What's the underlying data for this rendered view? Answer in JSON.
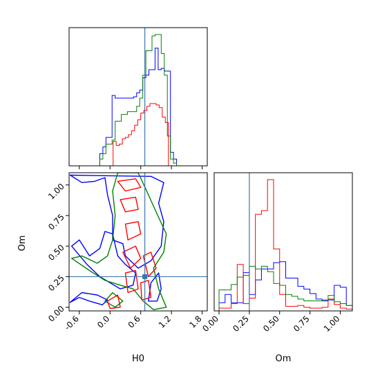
{
  "chart_data": {
    "type": "corner",
    "parameters": [
      "H0",
      "Om"
    ],
    "truth": {
      "H0": 0.68,
      "Om": 0.25
    },
    "colors": {
      "series1": "#0000ff",
      "series2": "#ff0000",
      "series3": "#008000",
      "truth": "#3b75af"
    },
    "hist_H0": {
      "type": "histogram",
      "ticks": [
        "-0.6",
        "0.0",
        "0.6",
        "1.2",
        "1.8"
      ],
      "tick_values": [
        -0.6,
        0.0,
        0.6,
        1.2,
        1.8
      ],
      "xlim": [
        -0.8,
        1.9
      ],
      "bin_width": 0.06,
      "series": [
        {
          "color": "blue",
          "edges_start": -0.2,
          "counts": [
            0.9,
            1.4,
            2.1,
            2.1,
            5.2,
            5.0,
            5.0,
            5.0,
            5.0,
            5.0,
            5.0,
            5.1,
            5.4,
            5.6,
            6.5,
            6.7,
            7.1,
            7.1,
            8.7,
            7.1,
            7.2,
            7.0,
            7.0,
            1.0,
            0.5
          ]
        },
        {
          "color": "green",
          "edges_start": -0.2,
          "counts": [
            0.5,
            0.9,
            1.6,
            1.6,
            1.9,
            3.3,
            3.3,
            3.8,
            3.8,
            4.0,
            4.0,
            4.0,
            4.4,
            5.0,
            6.7,
            8.5,
            8.5,
            9.6,
            9.7,
            9.7,
            8.3,
            6.7,
            2.2,
            0.5,
            0.2
          ]
        },
        {
          "color": "red",
          "edges_start": 0.0,
          "counts": [
            0.0,
            1.8,
            1.5,
            1.6,
            2.0,
            2.1,
            2.3,
            2.6,
            3.0,
            3.4,
            3.9,
            4.1,
            4.4,
            4.6,
            4.6,
            4.5,
            4.3,
            3.6,
            3.2,
            0.0
          ]
        }
      ]
    },
    "hist_Om": {
      "type": "histogram",
      "xlabel": "Om",
      "ticks": [
        "0.00",
        "0.25",
        "0.50",
        "0.75",
        "1.00"
      ],
      "tick_values": [
        0.0,
        0.25,
        0.5,
        0.75,
        1.0
      ],
      "xlim": [
        -0.04,
        1.1
      ],
      "bin_width": 0.05,
      "series": [
        {
          "color": "blue",
          "counts": [
            0.9,
            1.8,
            0.9,
            0.9,
            4.2,
            1.8,
            3.4,
            4.6,
            4.6,
            5.3,
            5.4,
            3.6,
            3.6,
            2.7,
            2.4,
            1.9,
            1.3,
            1.1,
            1.2,
            2.8,
            2.6,
            0.6
          ]
        },
        {
          "color": "red",
          "counts": [
            0.3,
            0.3,
            0.8,
            5.1,
            0.8,
            1.4,
            10.6,
            11.0,
            14.4,
            6.8,
            1.8,
            0.5,
            0.5,
            0.6,
            0.4,
            0.3,
            0.3,
            0.4,
            1.3,
            0.7,
            0.3,
            0.2
          ]
        },
        {
          "color": "green",
          "counts": [
            2.3,
            2.3,
            2.9,
            3.7,
            3.9,
            4.9,
            4.6,
            4.9,
            4.3,
            3.0,
            2.8,
            1.8,
            1.6,
            1.3,
            1.1,
            1.1,
            1.1,
            1.2,
            1.7,
            1.0,
            0.8,
            0.6
          ]
        }
      ]
    },
    "scatter_2d": {
      "type": "contour",
      "xlabel": "H0",
      "ylabel": "Om",
      "x_ticks": [
        "-0.6",
        "0.0",
        "0.6",
        "1.2",
        "1.8"
      ],
      "x_tick_values": [
        -0.6,
        0.0,
        0.6,
        1.2,
        1.8
      ],
      "y_ticks": [
        "0.00",
        "0.25",
        "0.50",
        "0.75",
        "1.00"
      ],
      "y_tick_values": [
        0.0,
        0.25,
        0.5,
        0.75,
        1.0
      ],
      "xlim": [
        -0.8,
        1.9
      ],
      "ylim": [
        -0.03,
        1.1
      ],
      "contours": [
        {
          "color": "blue",
          "points": [
            [
              -0.78,
              1.08
            ],
            [
              -0.55,
              1.02
            ],
            [
              -0.3,
              1.03
            ],
            [
              -0.1,
              1.06
            ],
            [
              -0.05,
              0.92
            ],
            [
              0.05,
              0.75
            ],
            [
              0.05,
              0.55
            ],
            [
              0.25,
              0.52
            ],
            [
              0.3,
              0.42
            ],
            [
              0.55,
              0.32
            ],
            [
              0.8,
              0.38
            ],
            [
              1.0,
              0.5
            ],
            [
              1.05,
              0.7
            ],
            [
              0.95,
              0.85
            ],
            [
              1.05,
              1.02
            ],
            [
              0.8,
              1.07
            ]
          ]
        },
        {
          "color": "blue",
          "points": [
            [
              -0.75,
              0.5
            ],
            [
              -0.6,
              0.55
            ],
            [
              -0.4,
              0.42
            ],
            [
              -0.2,
              0.48
            ],
            [
              -0.1,
              0.62
            ],
            [
              0.05,
              0.6
            ],
            [
              0.15,
              0.42
            ],
            [
              0.3,
              0.35
            ],
            [
              0.5,
              0.28
            ],
            [
              0.45,
              0.18
            ],
            [
              0.2,
              0.15
            ],
            [
              0.0,
              0.2
            ],
            [
              -0.2,
              0.25
            ],
            [
              -0.45,
              0.35
            ]
          ]
        },
        {
          "color": "blue",
          "points": [
            [
              -0.78,
              0.04
            ],
            [
              -0.6,
              0.08
            ],
            [
              -0.4,
              0.05
            ],
            [
              -0.15,
              0.02
            ],
            [
              -0.05,
              0.06
            ],
            [
              -0.25,
              0.1
            ],
            [
              -0.55,
              0.12
            ]
          ]
        },
        {
          "color": "blue",
          "points": [
            [
              0.75,
              0.05
            ],
            [
              0.8,
              0.2
            ],
            [
              0.95,
              0.28
            ],
            [
              1.0,
              0.15
            ],
            [
              0.92,
              0.05
            ]
          ]
        },
        {
          "color": "green",
          "points": [
            [
              -0.75,
              0.4
            ],
            [
              -0.55,
              0.42
            ],
            [
              -0.25,
              0.36
            ],
            [
              -0.05,
              0.42
            ],
            [
              0.05,
              0.55
            ],
            [
              0.1,
              0.75
            ],
            [
              0.05,
              0.95
            ],
            [
              0.15,
              1.1
            ],
            [
              0.55,
              1.1
            ],
            [
              0.75,
              0.92
            ],
            [
              0.9,
              0.78
            ],
            [
              1.1,
              0.6
            ],
            [
              1.05,
              0.45
            ],
            [
              0.85,
              0.32
            ],
            [
              0.95,
              0.15
            ],
            [
              1.1,
              0.0
            ],
            [
              0.85,
              -0.02
            ],
            [
              0.65,
              0.05
            ],
            [
              0.45,
              0.15
            ],
            [
              0.2,
              0.18
            ],
            [
              -0.1,
              0.22
            ],
            [
              -0.4,
              0.3
            ]
          ]
        },
        {
          "color": "green",
          "points": [
            [
              -0.1,
              0.05
            ],
            [
              0.05,
              0.12
            ],
            [
              0.25,
              0.05
            ],
            [
              0.1,
              0.0
            ]
          ]
        },
        {
          "color": "red",
          "points": [
            [
              0.15,
              1.03
            ],
            [
              0.5,
              1.05
            ],
            [
              0.6,
              0.98
            ],
            [
              0.3,
              0.95
            ]
          ]
        },
        {
          "color": "red",
          "points": [
            [
              0.2,
              0.88
            ],
            [
              0.5,
              0.9
            ],
            [
              0.55,
              0.8
            ],
            [
              0.3,
              0.78
            ]
          ]
        },
        {
          "color": "red",
          "points": [
            [
              0.3,
              0.68
            ],
            [
              0.55,
              0.7
            ],
            [
              0.6,
              0.6
            ],
            [
              0.35,
              0.55
            ]
          ]
        },
        {
          "color": "red",
          "points": [
            [
              0.25,
              0.45
            ],
            [
              0.5,
              0.5
            ],
            [
              0.6,
              0.4
            ],
            [
              0.4,
              0.32
            ]
          ]
        },
        {
          "color": "red",
          "points": [
            [
              0.65,
              0.42
            ],
            [
              0.8,
              0.45
            ],
            [
              0.9,
              0.32
            ],
            [
              0.75,
              0.25
            ]
          ]
        },
        {
          "color": "red",
          "points": [
            [
              0.3,
              0.28
            ],
            [
              0.5,
              0.3
            ],
            [
              0.55,
              0.15
            ],
            [
              0.35,
              0.12
            ]
          ]
        },
        {
          "color": "red",
          "points": [
            [
              -0.05,
              0.05
            ],
            [
              0.15,
              0.1
            ],
            [
              0.2,
              0.0
            ],
            [
              0.0,
              -0.01
            ]
          ]
        },
        {
          "color": "red",
          "points": [
            [
              0.6,
              0.2
            ],
            [
              0.75,
              0.22
            ],
            [
              0.8,
              0.08
            ],
            [
              0.62,
              0.06
            ]
          ]
        }
      ]
    }
  }
}
